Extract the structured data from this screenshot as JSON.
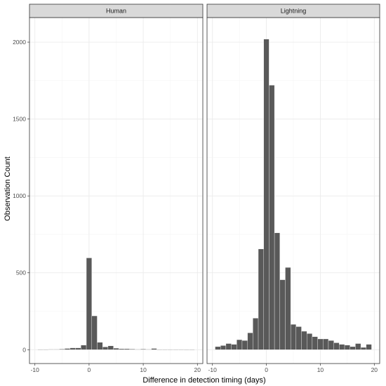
{
  "chart_data": {
    "type": "bar",
    "xlabel": "Difference in detection timing (days)",
    "ylabel": "Observation Count",
    "xlim": [
      -11,
      21
    ],
    "ylim": [
      -90,
      2160
    ],
    "x_ticks": [
      -10,
      0,
      10,
      20
    ],
    "y_ticks": [
      0,
      500,
      1000,
      1500,
      2000
    ],
    "bin_width": 1,
    "grid": true,
    "panels": [
      {
        "facet": "Human",
        "bins": [
          {
            "x": -9,
            "value": 2
          },
          {
            "x": -8,
            "value": 2
          },
          {
            "x": -7,
            "value": 3
          },
          {
            "x": -6,
            "value": 3
          },
          {
            "x": -5,
            "value": 4
          },
          {
            "x": -4,
            "value": 8
          },
          {
            "x": -3,
            "value": 12
          },
          {
            "x": -2,
            "value": 12
          },
          {
            "x": -1,
            "value": 30
          },
          {
            "x": 0,
            "value": 597
          },
          {
            "x": 1,
            "value": 220
          },
          {
            "x": 2,
            "value": 48
          },
          {
            "x": 3,
            "value": 18
          },
          {
            "x": 4,
            "value": 25
          },
          {
            "x": 5,
            "value": 10
          },
          {
            "x": 6,
            "value": 6
          },
          {
            "x": 7,
            "value": 6
          },
          {
            "x": 8,
            "value": 4
          },
          {
            "x": 9,
            "value": 3
          },
          {
            "x": 10,
            "value": 4
          },
          {
            "x": 11,
            "value": 3
          },
          {
            "x": 12,
            "value": 8
          },
          {
            "x": 13,
            "value": 2
          },
          {
            "x": 14,
            "value": 2
          },
          {
            "x": 15,
            "value": 2
          },
          {
            "x": 16,
            "value": 2
          },
          {
            "x": 17,
            "value": 2
          },
          {
            "x": 18,
            "value": 1
          },
          {
            "x": 19,
            "value": 1
          }
        ]
      },
      {
        "facet": "Lightning",
        "bins": [
          {
            "x": -9,
            "value": 20
          },
          {
            "x": -8,
            "value": 27
          },
          {
            "x": -7,
            "value": 40
          },
          {
            "x": -6,
            "value": 35
          },
          {
            "x": -5,
            "value": 65
          },
          {
            "x": -4,
            "value": 60
          },
          {
            "x": -3,
            "value": 110
          },
          {
            "x": -2,
            "value": 205
          },
          {
            "x": -1,
            "value": 655
          },
          {
            "x": 0,
            "value": 2020
          },
          {
            "x": 1,
            "value": 1720
          },
          {
            "x": 2,
            "value": 760
          },
          {
            "x": 3,
            "value": 455
          },
          {
            "x": 4,
            "value": 535
          },
          {
            "x": 5,
            "value": 165
          },
          {
            "x": 6,
            "value": 150
          },
          {
            "x": 7,
            "value": 120
          },
          {
            "x": 8,
            "value": 105
          },
          {
            "x": 9,
            "value": 85
          },
          {
            "x": 10,
            "value": 70
          },
          {
            "x": 11,
            "value": 70
          },
          {
            "x": 12,
            "value": 60
          },
          {
            "x": 13,
            "value": 45
          },
          {
            "x": 14,
            "value": 35
          },
          {
            "x": 15,
            "value": 30
          },
          {
            "x": 16,
            "value": 20
          },
          {
            "x": 17,
            "value": 40
          },
          {
            "x": 18,
            "value": 15
          },
          {
            "x": 19,
            "value": 35
          }
        ]
      }
    ]
  },
  "colors": {
    "bar_fill": "#595959",
    "bar_stroke": "#ffffff",
    "strip_fill": "#d9d9d9",
    "grid_major": "#ebebeb",
    "grid_minor": "#f5f5f5",
    "panel_border": "#333333"
  }
}
